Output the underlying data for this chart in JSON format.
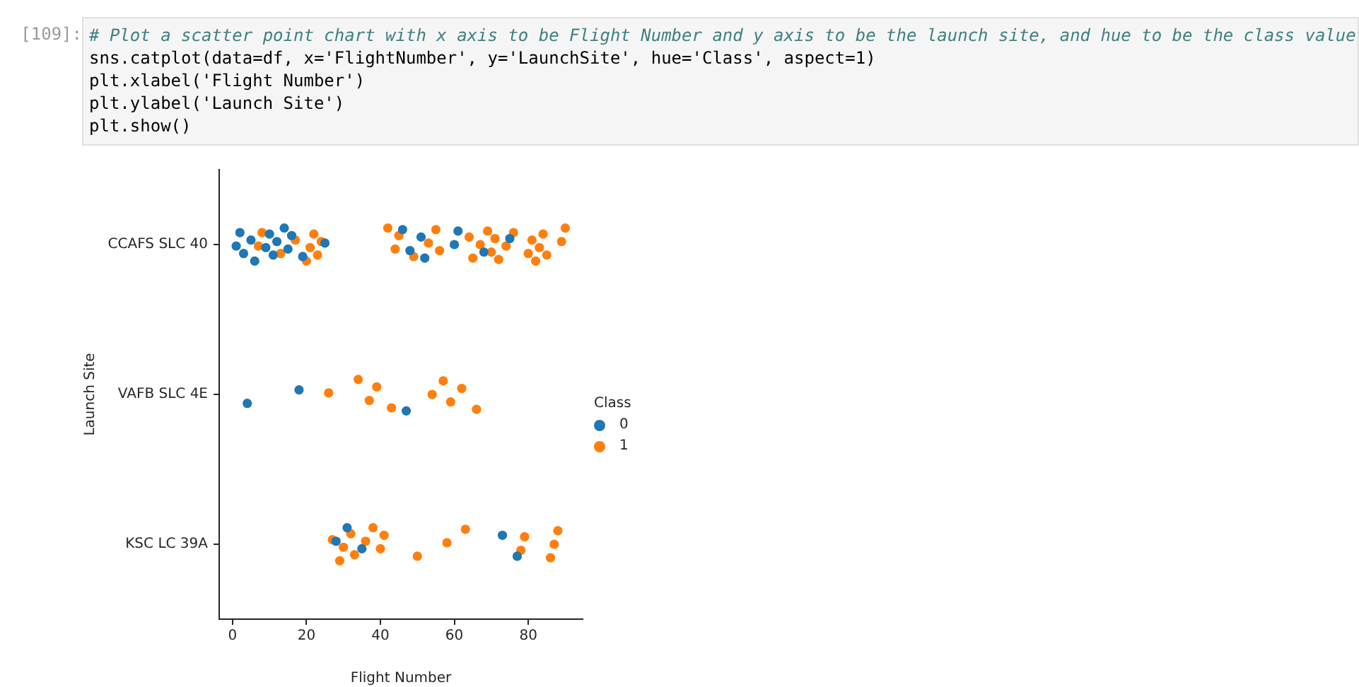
{
  "chart_data": {
    "type": "scatter",
    "orientation": "horizontal",
    "xlabel": "Flight Number",
    "ylabel": "Launch Site",
    "legend_title": "Class",
    "legend": "right",
    "grid": false,
    "marker": "circle",
    "xlim": [
      -3.6,
      94.7
    ],
    "xticks": [
      0,
      20,
      40,
      60,
      80
    ],
    "categories": [
      "CCAFS SLC 40",
      "VAFB SLC 4E",
      "KSC LC 39A"
    ],
    "annotations": [
      "[109]:",
      "# Plot a scatter point chart with x axis to be Flight Number and y axis to be the launch site, and hue to be the class value",
      "sns.catplot(data=df, x='FlightNumber', y='LaunchSite', hue='Class', aspect=1)",
      "plt.xlabel('Flight Number')",
      "plt.ylabel('Launch Site')",
      "plt.show()"
    ],
    "series": [
      {
        "name": "0",
        "color": "#1f77b4",
        "x": [
          "CCAFS SLC 40",
          "CCAFS SLC 40",
          "CCAFS SLC 40",
          "CCAFS SLC 40",
          "CCAFS SLC 40",
          "CCAFS SLC 40",
          "CCAFS SLC 40",
          "CCAFS SLC 40",
          "CCAFS SLC 40",
          "CCAFS SLC 40",
          "CCAFS SLC 40",
          "CCAFS SLC 40",
          "CCAFS SLC 40",
          "CCAFS SLC 40",
          "CCAFS SLC 40",
          "CCAFS SLC 40",
          "CCAFS SLC 40",
          "CCAFS SLC 40",
          "CCAFS SLC 40",
          "CCAFS SLC 40",
          "CCAFS SLC 40",
          "CCAFS SLC 40",
          "VAFB SLC 4E",
          "VAFB SLC 4E",
          "VAFB SLC 4E",
          "KSC LC 39A",
          "KSC LC 39A",
          "KSC LC 39A",
          "KSC LC 39A",
          "KSC LC 39A"
        ],
        "values": [
          1,
          2,
          3,
          5,
          6,
          9,
          10,
          11,
          12,
          14,
          15,
          16,
          19,
          25,
          46,
          48,
          51,
          52,
          60,
          61,
          68,
          75,
          4,
          18,
          47,
          28,
          31,
          35,
          73,
          77
        ]
      },
      {
        "name": "1",
        "color": "#ff7f0e",
        "x": [
          "CCAFS SLC 40",
          "CCAFS SLC 40",
          "CCAFS SLC 40",
          "CCAFS SLC 40",
          "CCAFS SLC 40",
          "CCAFS SLC 40",
          "CCAFS SLC 40",
          "CCAFS SLC 40",
          "CCAFS SLC 40",
          "CCAFS SLC 40",
          "CCAFS SLC 40",
          "CCAFS SLC 40",
          "CCAFS SLC 40",
          "CCAFS SLC 40",
          "CCAFS SLC 40",
          "CCAFS SLC 40",
          "CCAFS SLC 40",
          "CCAFS SLC 40",
          "CCAFS SLC 40",
          "CCAFS SLC 40",
          "CCAFS SLC 40",
          "CCAFS SLC 40",
          "CCAFS SLC 40",
          "CCAFS SLC 40",
          "CCAFS SLC 40",
          "CCAFS SLC 40",
          "CCAFS SLC 40",
          "CCAFS SLC 40",
          "CCAFS SLC 40",
          "CCAFS SLC 40",
          "CCAFS SLC 40",
          "CCAFS SLC 40",
          "CCAFS SLC 40",
          "VAFB SLC 4E",
          "VAFB SLC 4E",
          "VAFB SLC 4E",
          "VAFB SLC 4E",
          "VAFB SLC 4E",
          "VAFB SLC 4E",
          "VAFB SLC 4E",
          "VAFB SLC 4E",
          "VAFB SLC 4E",
          "VAFB SLC 4E",
          "KSC LC 39A",
          "KSC LC 39A",
          "KSC LC 39A",
          "KSC LC 39A",
          "KSC LC 39A",
          "KSC LC 39A",
          "KSC LC 39A",
          "KSC LC 39A",
          "KSC LC 39A",
          "KSC LC 39A",
          "KSC LC 39A",
          "KSC LC 39A",
          "KSC LC 39A",
          "KSC LC 39A",
          "KSC LC 39A",
          "KSC LC 39A",
          "KSC LC 39A"
        ],
        "values": [
          7,
          8,
          13,
          17,
          20,
          21,
          22,
          23,
          24,
          42,
          44,
          45,
          49,
          53,
          55,
          56,
          64,
          65,
          67,
          69,
          70,
          71,
          72,
          74,
          76,
          80,
          81,
          82,
          83,
          84,
          85,
          89,
          90,
          26,
          34,
          37,
          39,
          43,
          54,
          57,
          59,
          62,
          66,
          27,
          29,
          30,
          32,
          33,
          36,
          38,
          40,
          41,
          50,
          58,
          63,
          78,
          79,
          86,
          87,
          88
        ]
      }
    ]
  }
}
